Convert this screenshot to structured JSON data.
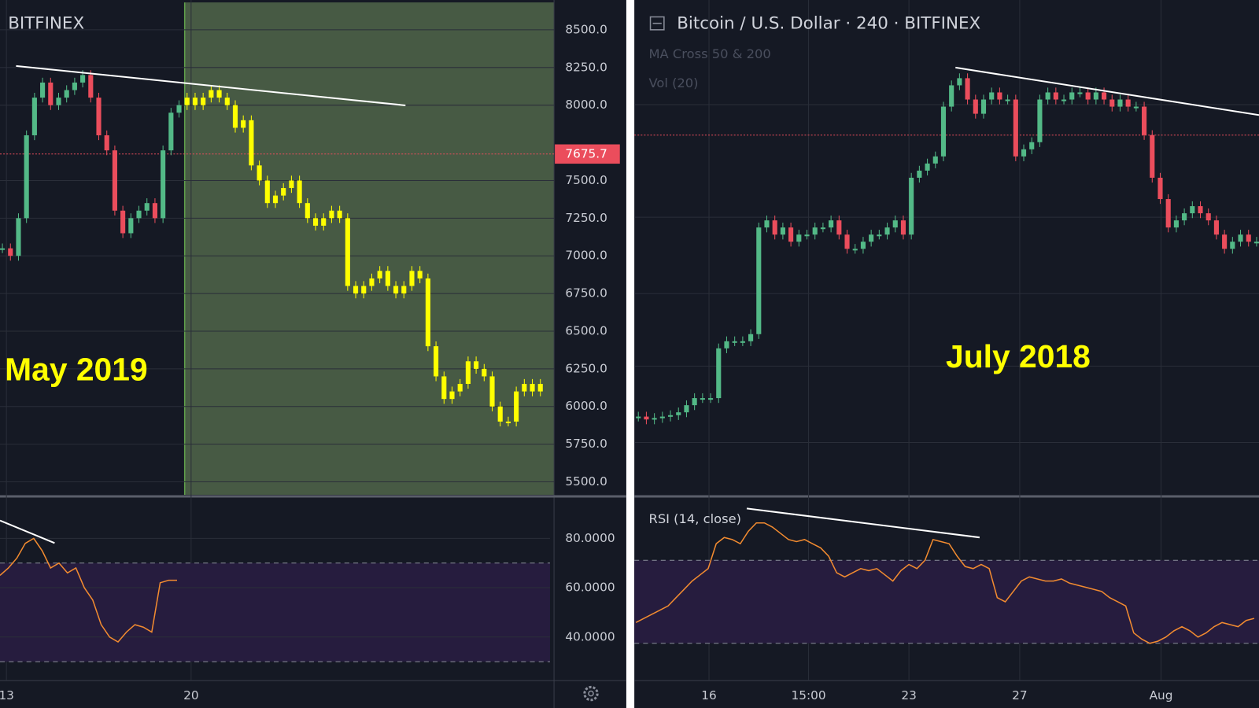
{
  "left_panel": {
    "exchange": "BITFINEX",
    "annotation": "May 2019",
    "ylim": [
      5414,
      8698
    ],
    "yticks": [
      {
        "value": 5500,
        "label": "5500.0"
      },
      {
        "value": 5750,
        "label": "5750.0"
      },
      {
        "value": 6000,
        "label": "6000.0"
      },
      {
        "value": 6250,
        "label": "6250.0"
      },
      {
        "value": 6500,
        "label": "6500.0"
      },
      {
        "value": 6750,
        "label": "6750.0"
      },
      {
        "value": 7000,
        "label": "7000.0"
      },
      {
        "value": 7250,
        "label": "7250.0"
      },
      {
        "value": 7500,
        "label": "7500.0"
      },
      {
        "value": 8000,
        "label": "8000.0"
      },
      {
        "value": 8250,
        "label": "8250.0"
      },
      {
        "value": 8500,
        "label": "8500.0"
      }
    ],
    "last_price": 7675.7,
    "history": [
      7050,
      7000,
      7250,
      7800,
      8050,
      8150,
      8000,
      8050,
      8100,
      8150,
      8200,
      8050,
      7800,
      7700,
      7300,
      7150,
      7250,
      7300,
      7350,
      7250,
      7700,
      7950,
      8000
    ],
    "projection": [
      8050,
      8000,
      8050,
      8100,
      8050,
      8000,
      7850,
      7900,
      7600,
      7500,
      7350,
      7400,
      7450,
      7500,
      7350,
      7250,
      7200,
      7250,
      7300,
      7250,
      6800,
      6750,
      6800,
      6850,
      6900,
      6800,
      6750,
      6800,
      6900,
      6850,
      6400,
      6200,
      6050,
      6100,
      6150,
      6300,
      6250,
      6200,
      6000,
      5900,
      5900,
      6100,
      6150,
      6100,
      6150
    ],
    "rsi": {
      "ylim": [
        22.3,
        96.7
      ],
      "yticks": [
        {
          "value": 40,
          "label": "40.0000"
        },
        {
          "value": 60,
          "label": "60.0000"
        },
        {
          "value": 80,
          "label": "80.0000"
        }
      ],
      "bands": [
        30,
        70
      ],
      "values": [
        65,
        68,
        72,
        78,
        80,
        75,
        68,
        70,
        66,
        68,
        60,
        55,
        45,
        40,
        38,
        42,
        45,
        44,
        42,
        62,
        63,
        63
      ]
    },
    "time_labels": [
      "13",
      "20"
    ]
  },
  "right_panel": {
    "title": "Bitcoin / U.S. Dollar · 240 · BITFINEX",
    "indicators": [
      "MA Cross 50 & 200",
      "Vol (20)"
    ],
    "annotation": "July 2018",
    "ylim": [
      5370,
      8850
    ],
    "price_line": 7900,
    "candles": [
      5920,
      5900,
      5910,
      5920,
      5930,
      5950,
      6000,
      6050,
      6050,
      6050,
      6400,
      6450,
      6450,
      6450,
      6500,
      7250,
      7300,
      7200,
      7250,
      7150,
      7200,
      7200,
      7250,
      7250,
      7300,
      7200,
      7100,
      7100,
      7150,
      7200,
      7200,
      7250,
      7300,
      7200,
      7600,
      7650,
      7700,
      7750,
      8100,
      8250,
      8300,
      8150,
      8050,
      8150,
      8200,
      8150,
      8150,
      7750,
      7800,
      7850,
      8150,
      8200,
      8150,
      8150,
      8200,
      8200,
      8150,
      8200,
      8150,
      8100,
      8150,
      8100,
      8100,
      7900,
      7600,
      7450,
      7250,
      7300,
      7350,
      7400,
      7350,
      7300,
      7200,
      7100,
      7150,
      7200,
      7150,
      7150
    ],
    "rsi": {
      "label": "RSI (14, close)",
      "ylim": [
        12,
        100.4
      ],
      "bands": [
        30,
        70
      ],
      "values": [
        40,
        42,
        44,
        46,
        48,
        52,
        56,
        60,
        63,
        66,
        78,
        81,
        80,
        78,
        84,
        88,
        88,
        86,
        83,
        80,
        79,
        80,
        78,
        76,
        72,
        64,
        62,
        64,
        66,
        65,
        66,
        63,
        60,
        65,
        68,
        66,
        70,
        80,
        79,
        78,
        72,
        67,
        66,
        68,
        66,
        52,
        50,
        55,
        60,
        62,
        61,
        60,
        60,
        61,
        59,
        58,
        57,
        56,
        55,
        52,
        50,
        48,
        35,
        32,
        30,
        31,
        33,
        36,
        38,
        36,
        33,
        35,
        38,
        40,
        39,
        38,
        41,
        42
      ]
    },
    "time_labels": [
      "16",
      "15:00",
      "23",
      "27",
      "Aug"
    ]
  }
}
